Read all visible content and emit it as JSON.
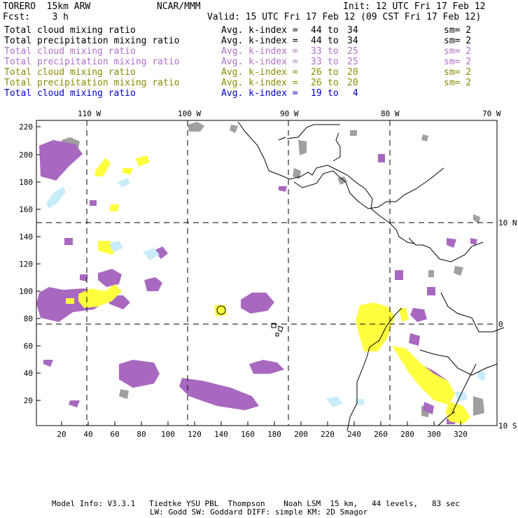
{
  "header": {
    "title_left": "TORERO  15km ARW",
    "center": "NCAR/MMM",
    "init": "Init: 12 UTC Fri 17 Feb 12",
    "fcst": "Fcst:    3 h",
    "valid": "Valid: 15 UTC Fri 17 Feb 12 (09 CST Fri 17 Feb 12)"
  },
  "legend": [
    {
      "name": "Total cloud mixing ratio",
      "kindex": "Avg. k-index =",
      "from": "44",
      "to": "34",
      "sm": "sm= 2",
      "color": "#000000"
    },
    {
      "name": "Total precipitation mixing ratio",
      "kindex": "Avg. k-index =",
      "from": "44",
      "to": "34",
      "sm": "sm= 2",
      "color": "#000000"
    },
    {
      "name": "Total cloud mixing ratio",
      "kindex": "Avg. k-index =",
      "from": "33",
      "to": "25",
      "sm": "sm= 2",
      "color": "#b070c8"
    },
    {
      "name": "Total precipitation mixing ratio",
      "kindex": "Avg. k-index =",
      "from": "33",
      "to": "25",
      "sm": "sm= 2",
      "color": "#b070c8"
    },
    {
      "name": "Total cloud mixing ratio",
      "kindex": "Avg. k-index =",
      "from": "26",
      "to": "20",
      "sm": "sm= 2",
      "color": "#8a8a00"
    },
    {
      "name": "Total precipitation mixing ratio",
      "kindex": "Avg. k-index =",
      "from": "26",
      "to": "20",
      "sm": "sm= 2",
      "color": "#8a8a00"
    },
    {
      "name": "Total cloud mixing ratio",
      "kindex": "Avg. k-index =",
      "from": "19",
      "to": " 4",
      "sm": "",
      "color": "#0000cc"
    }
  ],
  "map": {
    "lon_labels": [
      "110 W",
      "100 W",
      "90 W",
      "80 W",
      "70 W"
    ],
    "lat_labels": [
      "10 N",
      "0",
      "10 S"
    ],
    "y_ticks": [
      "220",
      "200",
      "180",
      "160",
      "140",
      "120",
      "100",
      "80",
      "60",
      "40",
      "20"
    ],
    "x_ticks": [
      "20",
      "40",
      "60",
      "80",
      "100",
      "120",
      "140",
      "160",
      "180",
      "200",
      "220",
      "240",
      "260",
      "280",
      "300",
      "320"
    ],
    "colors": {
      "gray": "#a0a0a0",
      "purple": "#a868c0",
      "yellow": "#ffff40",
      "lightblue": "#c8ecfa"
    }
  },
  "footer": {
    "line1": "Model Info: V3.3.1   Tiedtke YSU PBL  Thompson    Noah LSM  15 km,   44 levels,   83 sec",
    "line2": "LW: Godd SW: Goddard DIFF: simple KM: 2D Smagor"
  }
}
